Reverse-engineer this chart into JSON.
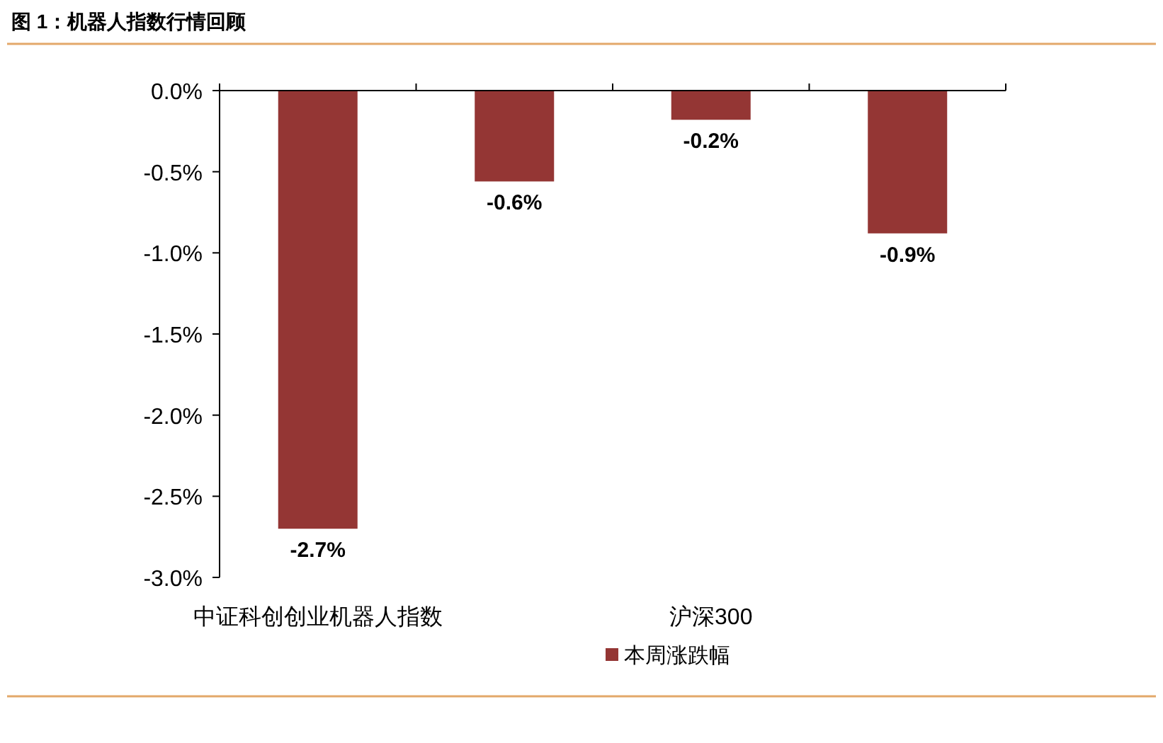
{
  "chart_data": {
    "type": "bar",
    "title": "图 1：机器人指数行情回顾",
    "categories": [
      "中证科创创业机器人指数",
      null,
      "沪深300",
      null
    ],
    "series": [
      {
        "name": "本周涨跌幅",
        "color": "#943634",
        "values": [
          -2.7,
          -0.56,
          -0.18,
          -0.88
        ],
        "value_labels": [
          "-2.7%",
          "-0.6%",
          "-0.2%",
          "-0.9%"
        ]
      }
    ],
    "ylim": [
      -3.0,
      0.0
    ],
    "yticks": [
      {
        "value": 0,
        "label": "0.0%"
      },
      {
        "value": -0.5,
        "label": "-0.5%"
      },
      {
        "value": -1.0,
        "label": "-1.0%"
      },
      {
        "value": -1.5,
        "label": "-1.5%"
      },
      {
        "value": -2.0,
        "label": "-2.0%"
      },
      {
        "value": -2.5,
        "label": "-2.5%"
      },
      {
        "value": -3.0,
        "label": "-3.0%"
      }
    ],
    "legend": "bottom"
  }
}
